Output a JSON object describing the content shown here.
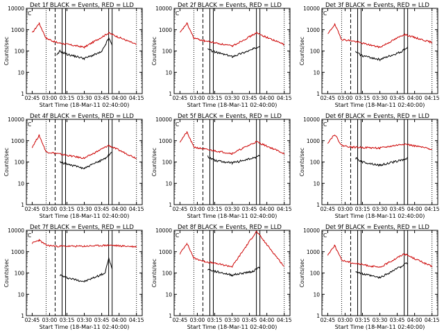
{
  "figure": {
    "x_axis_label": "Start Time (18-Mar-11 02:40:00)",
    "y_axis_label": "Counts/sec",
    "y_ticks": [
      "1",
      "10",
      "100",
      "1000",
      "10000"
    ],
    "x_ticks": [
      "02:45",
      "03:00",
      "03:15",
      "03:30",
      "03:45",
      "04:00",
      "04:15"
    ],
    "corner_mark": "C",
    "colors": {
      "events": "#000000",
      "lld": "#cc0000",
      "axes": "#000000"
    }
  },
  "chart_data": [
    {
      "type": "line",
      "title": "Det 1f BLACK = Events, RED = LLD",
      "ylim": [
        1,
        10000
      ],
      "log_y": true,
      "series": [
        {
          "name": "Events",
          "values": [
            [
              3.1,
              60
            ],
            [
              3.15,
              100
            ],
            [
              3.25,
              70
            ],
            [
              3.5,
              45
            ],
            [
              3.75,
              90
            ],
            [
              3.85,
              400
            ],
            [
              3.9,
              200
            ]
          ]
        },
        {
          "name": "LLD",
          "values": [
            [
              2.75,
              700
            ],
            [
              2.85,
              2000
            ],
            [
              2.95,
              400
            ],
            [
              3.1,
              250
            ],
            [
              3.5,
              150
            ],
            [
              3.85,
              700
            ],
            [
              4.25,
              200
            ]
          ]
        }
      ]
    },
    {
      "type": "line",
      "title": "Det 2f BLACK = Events, RED = LLD",
      "ylim": [
        1,
        10000
      ],
      "log_y": true,
      "series": [
        {
          "name": "Events",
          "values": [
            [
              3.15,
              120
            ],
            [
              3.25,
              90
            ],
            [
              3.5,
              55
            ],
            [
              3.8,
              120
            ],
            [
              3.9,
              180
            ]
          ]
        },
        {
          "name": "LLD",
          "values": [
            [
              2.75,
              700
            ],
            [
              2.85,
              2000
            ],
            [
              2.95,
              400
            ],
            [
              3.1,
              300
            ],
            [
              3.5,
              170
            ],
            [
              3.85,
              700
            ],
            [
              4.25,
              200
            ]
          ]
        }
      ]
    },
    {
      "type": "line",
      "title": "Det 3f BLACK = Events, RED = LLD",
      "ylim": [
        1,
        10000
      ],
      "log_y": true,
      "series": [
        {
          "name": "Events",
          "values": [
            [
              3.15,
              90
            ],
            [
              3.25,
              60
            ],
            [
              3.5,
              40
            ],
            [
              3.8,
              90
            ],
            [
              3.9,
              150
            ]
          ]
        },
        {
          "name": "LLD",
          "values": [
            [
              2.75,
              600
            ],
            [
              2.85,
              1800
            ],
            [
              2.95,
              350
            ],
            [
              3.1,
              300
            ],
            [
              3.5,
              150
            ],
            [
              3.85,
              600
            ],
            [
              4.25,
              250
            ]
          ]
        }
      ]
    },
    {
      "type": "line",
      "title": "Det 4f BLACK = Events, RED = LLD",
      "ylim": [
        1,
        10000
      ],
      "log_y": true,
      "series": [
        {
          "name": "Events",
          "values": [
            [
              3.15,
              100
            ],
            [
              3.25,
              80
            ],
            [
              3.5,
              50
            ],
            [
              3.8,
              150
            ],
            [
              3.9,
              300
            ]
          ]
        },
        {
          "name": "LLD",
          "values": [
            [
              2.75,
              500
            ],
            [
              2.85,
              1800
            ],
            [
              2.95,
              300
            ],
            [
              3.1,
              250
            ],
            [
              3.5,
              150
            ],
            [
              3.85,
              600
            ],
            [
              4.25,
              150
            ]
          ]
        }
      ]
    },
    {
      "type": "line",
      "title": "Det 5f BLACK = Events, RED = LLD",
      "ylim": [
        1,
        10000
      ],
      "log_y": true,
      "series": [
        {
          "name": "Events",
          "values": [
            [
              3.15,
              180
            ],
            [
              3.25,
              120
            ],
            [
              3.5,
              90
            ],
            [
              3.8,
              150
            ],
            [
              3.9,
              200
            ]
          ]
        },
        {
          "name": "LLD",
          "values": [
            [
              2.75,
              900
            ],
            [
              2.85,
              2500
            ],
            [
              2.95,
              500
            ],
            [
              3.1,
              400
            ],
            [
              3.5,
              250
            ],
            [
              3.85,
              900
            ],
            [
              4.25,
              250
            ]
          ]
        }
      ]
    },
    {
      "type": "line",
      "title": "Det 6f BLACK = Events, RED = LLD",
      "ylim": [
        1,
        10000
      ],
      "log_y": true,
      "series": [
        {
          "name": "Events",
          "values": [
            [
              3.15,
              150
            ],
            [
              3.25,
              100
            ],
            [
              3.5,
              70
            ],
            [
              3.8,
              120
            ],
            [
              3.9,
              150
            ]
          ]
        },
        {
          "name": "LLD",
          "values": [
            [
              2.75,
              800
            ],
            [
              2.85,
              2000
            ],
            [
              2.95,
              600
            ],
            [
              3.1,
              500
            ],
            [
              3.5,
              450
            ],
            [
              3.85,
              700
            ],
            [
              4.25,
              400
            ]
          ]
        }
      ]
    },
    {
      "type": "line",
      "title": "Det 7f BLACK = Events, RED = LLD",
      "ylim": [
        1,
        10000
      ],
      "log_y": true,
      "series": [
        {
          "name": "Events",
          "values": [
            [
              3.15,
              80
            ],
            [
              3.25,
              60
            ],
            [
              3.5,
              40
            ],
            [
              3.8,
              100
            ],
            [
              3.85,
              500
            ],
            [
              3.9,
              150
            ]
          ]
        },
        {
          "name": "LLD",
          "values": [
            [
              2.75,
              2500
            ],
            [
              2.85,
              3500
            ],
            [
              2.95,
              2000
            ],
            [
              3.1,
              1800
            ],
            [
              3.5,
              1800
            ],
            [
              3.85,
              2000
            ],
            [
              4.25,
              1700
            ]
          ]
        }
      ]
    },
    {
      "type": "line",
      "title": "Det 8f BLACK = Events, RED = LLD",
      "ylim": [
        1,
        10000
      ],
      "log_y": true,
      "series": [
        {
          "name": "Events",
          "values": [
            [
              3.15,
              150
            ],
            [
              3.25,
              120
            ],
            [
              3.5,
              80
            ],
            [
              3.8,
              120
            ],
            [
              3.9,
              200
            ]
          ]
        },
        {
          "name": "LLD",
          "values": [
            [
              2.75,
              800
            ],
            [
              2.85,
              2500
            ],
            [
              2.95,
              500
            ],
            [
              3.1,
              350
            ],
            [
              3.5,
              200
            ],
            [
              3.85,
              9000
            ],
            [
              4.25,
              200
            ]
          ]
        }
      ]
    },
    {
      "type": "line",
      "title": "Det 9f BLACK = Events, RED = LLD",
      "ylim": [
        1,
        10000
      ],
      "log_y": true,
      "series": [
        {
          "name": "Events",
          "values": [
            [
              3.15,
              120
            ],
            [
              3.25,
              90
            ],
            [
              3.5,
              60
            ],
            [
              3.8,
              200
            ],
            [
              3.9,
              300
            ]
          ]
        },
        {
          "name": "LLD",
          "values": [
            [
              2.75,
              700
            ],
            [
              2.85,
              2000
            ],
            [
              2.95,
              400
            ],
            [
              3.1,
              300
            ],
            [
              3.5,
              180
            ],
            [
              3.85,
              800
            ],
            [
              4.25,
              200
            ]
          ]
        }
      ]
    }
  ]
}
